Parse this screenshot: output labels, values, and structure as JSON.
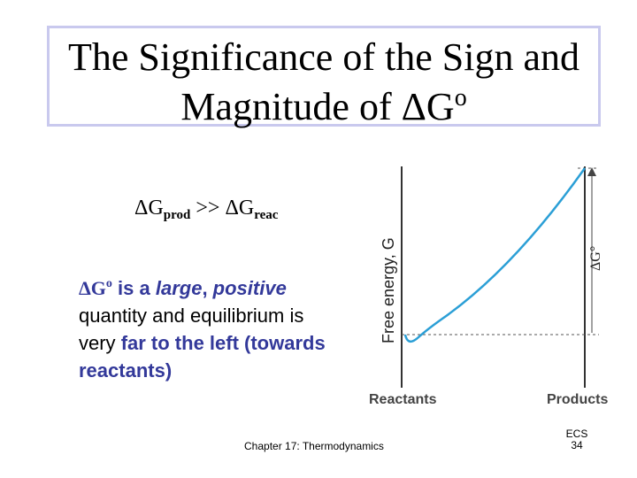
{
  "title": {
    "line1": "The Significance of the Sign and",
    "line2_prefix": "Magnitude of ",
    "delta": "Δ",
    "g": "G",
    "superscript": "o"
  },
  "relation": {
    "delta1": "Δ",
    "g1": "G",
    "sub1": "prod",
    "operator": " >> ",
    "delta2": "Δ",
    "g2": "G",
    "sub2": "reac"
  },
  "paragraph": {
    "delta": "Δ",
    "g": "G",
    "superscript": "o",
    "is_a": " is a ",
    "large": "large",
    "comma": ", ",
    "positive": "positive",
    "line2": "quantity and equilibrium is",
    "line3_prefix": "very ",
    "highlight_line3": "far to the left (towards",
    "highlight_line4": "reactants)"
  },
  "graph": {
    "y_axis_label": "Free energy, G",
    "delta_g_label": "ΔG°",
    "x_label_left": "Reactants",
    "x_label_right": "Products",
    "curve_color": "#2b9fd6"
  },
  "footer": {
    "chapter": "Chapter 17: Thermodynamics",
    "ecs": "ECS",
    "page": "34"
  }
}
